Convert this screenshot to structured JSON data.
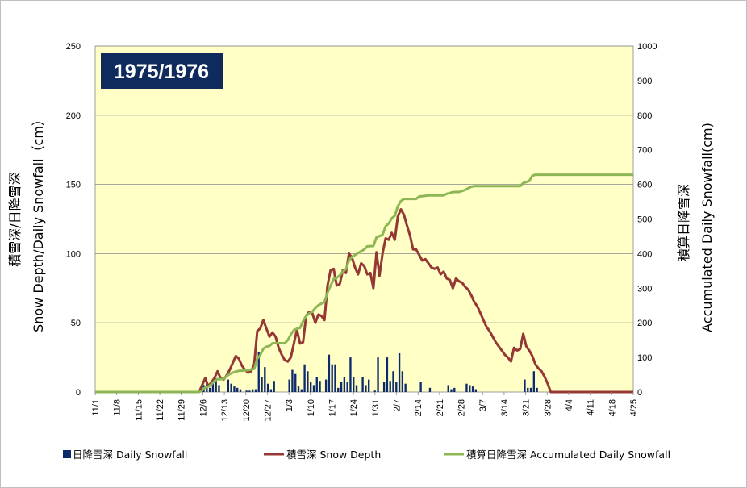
{
  "chart_data": {
    "type": "bar+line",
    "title": "1975/1976",
    "ylabel_left_line1": "積雪深/日降雪深",
    "ylabel_left_line2": "Snow Depth/Daily Snowfall（cm）",
    "ylabel_right_line1": "積算日降雪深",
    "ylabel_right_line2": "Accumulated Daily Snowfall(cm)",
    "ylim_left": [
      0,
      250
    ],
    "ylim_right": [
      0,
      1000
    ],
    "yticks_left": [
      "0",
      "50",
      "100",
      "150",
      "200",
      "250"
    ],
    "yticks_right": [
      "0",
      "100",
      "200",
      "300",
      "400",
      "500",
      "600",
      "700",
      "800",
      "900",
      "1000"
    ],
    "x_domain_dates": [
      "1975-11-01",
      "1976-04-25"
    ],
    "xtick_labels": [
      "11/1",
      "11/8",
      "11/15",
      "11/22",
      "11/29",
      "12/6",
      "12/13",
      "12/20",
      "12/27",
      "1/3",
      "1/10",
      "1/17",
      "1/24",
      "1/31",
      "2/7",
      "2/14",
      "2/21",
      "2/28",
      "3/7",
      "3/14",
      "3/21",
      "3/28",
      "4/4",
      "4/11",
      "4/18",
      "4/25"
    ],
    "grid": true,
    "plot_background": "#ffffc6",
    "legend_position": "bottom",
    "series": [
      {
        "name": "日降雪深 Daily Snowfall",
        "type": "bar",
        "axis": "left",
        "color": "#0d2a6e",
        "points": [
          [
            "1975-12-06",
            5
          ],
          [
            "1975-12-07",
            8
          ],
          [
            "1975-12-08",
            3
          ],
          [
            "1975-12-09",
            6
          ],
          [
            "1975-12-10",
            10
          ],
          [
            "1975-12-11",
            5
          ],
          [
            "1975-12-14",
            9
          ],
          [
            "1975-12-15",
            6
          ],
          [
            "1975-12-16",
            4
          ],
          [
            "1975-12-17",
            3
          ],
          [
            "1975-12-18",
            2
          ],
          [
            "1975-12-20",
            1
          ],
          [
            "1975-12-21",
            1
          ],
          [
            "1975-12-22",
            2
          ],
          [
            "1975-12-23",
            2
          ],
          [
            "1975-12-24",
            29
          ],
          [
            "1975-12-25",
            11
          ],
          [
            "1975-12-26",
            18
          ],
          [
            "1975-12-27",
            6
          ],
          [
            "1975-12-28",
            2
          ],
          [
            "1975-12-29",
            8
          ],
          [
            "1976-01-03",
            9
          ],
          [
            "1976-01-04",
            16
          ],
          [
            "1976-01-05",
            13
          ],
          [
            "1976-01-06",
            4
          ],
          [
            "1976-01-07",
            2
          ],
          [
            "1976-01-08",
            20
          ],
          [
            "1976-01-09",
            15
          ],
          [
            "1976-01-10",
            7
          ],
          [
            "1976-01-11",
            5
          ],
          [
            "1976-01-12",
            11
          ],
          [
            "1976-01-13",
            8
          ],
          [
            "1976-01-15",
            9
          ],
          [
            "1976-01-16",
            27
          ],
          [
            "1976-01-17",
            20
          ],
          [
            "1976-01-18",
            20
          ],
          [
            "1976-01-19",
            3
          ],
          [
            "1976-01-20",
            7
          ],
          [
            "1976-01-21",
            11
          ],
          [
            "1976-01-22",
            7
          ],
          [
            "1976-01-23",
            25
          ],
          [
            "1976-01-24",
            11
          ],
          [
            "1976-01-25",
            5
          ],
          [
            "1976-01-27",
            11
          ],
          [
            "1976-01-28",
            5
          ],
          [
            "1976-01-29",
            9
          ],
          [
            "1976-01-31",
            1
          ],
          [
            "1976-02-01",
            25
          ],
          [
            "1976-02-03",
            7
          ],
          [
            "1976-02-04",
            25
          ],
          [
            "1976-02-05",
            8
          ],
          [
            "1976-02-06",
            15
          ],
          [
            "1976-02-07",
            7
          ],
          [
            "1976-02-08",
            28
          ],
          [
            "1976-02-09",
            15
          ],
          [
            "1976-02-10",
            6
          ],
          [
            "1976-02-15",
            7
          ],
          [
            "1976-02-18",
            3
          ],
          [
            "1976-02-24",
            5
          ],
          [
            "1976-02-25",
            2
          ],
          [
            "1976-02-26",
            3
          ],
          [
            "1976-03-01",
            6
          ],
          [
            "1976-03-02",
            5
          ],
          [
            "1976-03-03",
            4
          ],
          [
            "1976-03-04",
            2
          ],
          [
            "1976-03-20",
            9
          ],
          [
            "1976-03-21",
            3
          ],
          [
            "1976-03-22",
            3
          ],
          [
            "1976-03-23",
            15
          ],
          [
            "1976-03-24",
            3
          ]
        ]
      },
      {
        "name": "積雪深 Snow Depth",
        "type": "line",
        "axis": "left",
        "color": "#953735",
        "points": [
          [
            "1975-12-05",
            0
          ],
          [
            "1975-12-06",
            5
          ],
          [
            "1975-12-07",
            10
          ],
          [
            "1975-12-08",
            4
          ],
          [
            "1975-12-09",
            7
          ],
          [
            "1975-12-10",
            10
          ],
          [
            "1975-12-11",
            15
          ],
          [
            "1975-12-12",
            10
          ],
          [
            "1975-12-13",
            9
          ],
          [
            "1975-12-14",
            12
          ],
          [
            "1975-12-15",
            16
          ],
          [
            "1975-12-16",
            21
          ],
          [
            "1975-12-17",
            26
          ],
          [
            "1975-12-18",
            24
          ],
          [
            "1975-12-19",
            19
          ],
          [
            "1975-12-20",
            16
          ],
          [
            "1975-12-21",
            14
          ],
          [
            "1975-12-22",
            15
          ],
          [
            "1975-12-23",
            20
          ],
          [
            "1975-12-24",
            44
          ],
          [
            "1975-12-25",
            46
          ],
          [
            "1975-12-26",
            52
          ],
          [
            "1975-12-27",
            46
          ],
          [
            "1975-12-28",
            40
          ],
          [
            "1975-12-29",
            43
          ],
          [
            "1975-12-30",
            40
          ],
          [
            "1975-12-31",
            32
          ],
          [
            "1976-01-01",
            27
          ],
          [
            "1976-01-02",
            23
          ],
          [
            "1976-01-03",
            22
          ],
          [
            "1976-01-04",
            25
          ],
          [
            "1976-01-05",
            35
          ],
          [
            "1976-01-06",
            45
          ],
          [
            "1976-01-07",
            35
          ],
          [
            "1976-01-08",
            36
          ],
          [
            "1976-01-09",
            55
          ],
          [
            "1976-01-10",
            58
          ],
          [
            "1976-01-11",
            57
          ],
          [
            "1976-01-12",
            50
          ],
          [
            "1976-01-13",
            56
          ],
          [
            "1976-01-14",
            55
          ],
          [
            "1976-01-15",
            52
          ],
          [
            "1976-01-16",
            77
          ],
          [
            "1976-01-17",
            88
          ],
          [
            "1976-01-18",
            89
          ],
          [
            "1976-01-19",
            77
          ],
          [
            "1976-01-20",
            78
          ],
          [
            "1976-01-21",
            88
          ],
          [
            "1976-01-22",
            86
          ],
          [
            "1976-01-23",
            100
          ],
          [
            "1976-01-24",
            97
          ],
          [
            "1976-01-25",
            90
          ],
          [
            "1976-01-26",
            85
          ],
          [
            "1976-01-27",
            93
          ],
          [
            "1976-01-28",
            91
          ],
          [
            "1976-01-29",
            85
          ],
          [
            "1976-01-30",
            86
          ],
          [
            "1976-01-31",
            75
          ],
          [
            "1976-02-01",
            101
          ],
          [
            "1976-02-02",
            84
          ],
          [
            "1976-02-03",
            100
          ],
          [
            "1976-02-04",
            111
          ],
          [
            "1976-02-05",
            110
          ],
          [
            "1976-02-06",
            115
          ],
          [
            "1976-02-07",
            110
          ],
          [
            "1976-02-08",
            127
          ],
          [
            "1976-02-09",
            132
          ],
          [
            "1976-02-10",
            128
          ],
          [
            "1976-02-11",
            120
          ],
          [
            "1976-02-12",
            113
          ],
          [
            "1976-02-13",
            103
          ],
          [
            "1976-02-14",
            103
          ],
          [
            "1976-02-15",
            99
          ],
          [
            "1976-02-16",
            95
          ],
          [
            "1976-02-17",
            96
          ],
          [
            "1976-02-18",
            93
          ],
          [
            "1976-02-19",
            90
          ],
          [
            "1976-02-20",
            89
          ],
          [
            "1976-02-21",
            90
          ],
          [
            "1976-02-22",
            85
          ],
          [
            "1976-02-23",
            87
          ],
          [
            "1976-02-24",
            82
          ],
          [
            "1976-02-25",
            81
          ],
          [
            "1976-02-26",
            75
          ],
          [
            "1976-02-27",
            82
          ],
          [
            "1976-02-28",
            80
          ],
          [
            "1976-02-29",
            79
          ],
          [
            "1976-03-01",
            76
          ],
          [
            "1976-03-02",
            74
          ],
          [
            "1976-03-03",
            70
          ],
          [
            "1976-03-04",
            65
          ],
          [
            "1976-03-05",
            62
          ],
          [
            "1976-03-06",
            57
          ],
          [
            "1976-03-07",
            52
          ],
          [
            "1976-03-08",
            47
          ],
          [
            "1976-03-09",
            44
          ],
          [
            "1976-03-10",
            40
          ],
          [
            "1976-03-11",
            36
          ],
          [
            "1976-03-12",
            33
          ],
          [
            "1976-03-13",
            30
          ],
          [
            "1976-03-14",
            27
          ],
          [
            "1976-03-15",
            25
          ],
          [
            "1976-03-16",
            22
          ],
          [
            "1976-03-17",
            32
          ],
          [
            "1976-03-18",
            30
          ],
          [
            "1976-03-19",
            31
          ],
          [
            "1976-03-20",
            42
          ],
          [
            "1976-03-21",
            33
          ],
          [
            "1976-03-22",
            30
          ],
          [
            "1976-03-23",
            26
          ],
          [
            "1976-03-24",
            20
          ],
          [
            "1976-03-25",
            17
          ],
          [
            "1976-03-26",
            15
          ],
          [
            "1976-03-27",
            11
          ],
          [
            "1976-03-28",
            6
          ],
          [
            "1976-03-29",
            0
          ],
          [
            "1976-04-25",
            0
          ]
        ]
      },
      {
        "name": "積算日降雪深 Accumulated Daily Snowfall",
        "type": "line",
        "axis": "right",
        "color": "#8db654",
        "points": [
          [
            "1975-11-01",
            0
          ],
          [
            "1975-12-05",
            0
          ],
          [
            "1975-12-06",
            5
          ],
          [
            "1975-12-07",
            13
          ],
          [
            "1975-12-08",
            16
          ],
          [
            "1975-12-09",
            22
          ],
          [
            "1975-12-10",
            32
          ],
          [
            "1975-12-11",
            37
          ],
          [
            "1975-12-13",
            37
          ],
          [
            "1975-12-14",
            46
          ],
          [
            "1975-12-15",
            52
          ],
          [
            "1975-12-16",
            56
          ],
          [
            "1975-12-17",
            59
          ],
          [
            "1975-12-18",
            61
          ],
          [
            "1975-12-20",
            62
          ],
          [
            "1975-12-21",
            63
          ],
          [
            "1975-12-22",
            65
          ],
          [
            "1975-12-23",
            67
          ],
          [
            "1975-12-24",
            96
          ],
          [
            "1975-12-25",
            107
          ],
          [
            "1975-12-26",
            125
          ],
          [
            "1975-12-27",
            131
          ],
          [
            "1975-12-28",
            133
          ],
          [
            "1975-12-29",
            141
          ],
          [
            "1976-01-02",
            141
          ],
          [
            "1976-01-03",
            150
          ],
          [
            "1976-01-04",
            166
          ],
          [
            "1976-01-05",
            179
          ],
          [
            "1976-01-06",
            183
          ],
          [
            "1976-01-07",
            185
          ],
          [
            "1976-01-08",
            205
          ],
          [
            "1976-01-09",
            220
          ],
          [
            "1976-01-10",
            227
          ],
          [
            "1976-01-11",
            232
          ],
          [
            "1976-01-12",
            243
          ],
          [
            "1976-01-13",
            251
          ],
          [
            "1976-01-15",
            260
          ],
          [
            "1976-01-16",
            287
          ],
          [
            "1976-01-17",
            307
          ],
          [
            "1976-01-18",
            327
          ],
          [
            "1976-01-19",
            330
          ],
          [
            "1976-01-20",
            337
          ],
          [
            "1976-01-21",
            348
          ],
          [
            "1976-01-22",
            355
          ],
          [
            "1976-01-23",
            380
          ],
          [
            "1976-01-24",
            391
          ],
          [
            "1976-01-25",
            396
          ],
          [
            "1976-01-27",
            407
          ],
          [
            "1976-01-28",
            412
          ],
          [
            "1976-01-29",
            421
          ],
          [
            "1976-01-31",
            422
          ],
          [
            "1976-02-01",
            447
          ],
          [
            "1976-02-03",
            454
          ],
          [
            "1976-02-04",
            479
          ],
          [
            "1976-02-05",
            487
          ],
          [
            "1976-02-06",
            502
          ],
          [
            "1976-02-07",
            509
          ],
          [
            "1976-02-08",
            537
          ],
          [
            "1976-02-09",
            552
          ],
          [
            "1976-02-10",
            558
          ],
          [
            "1976-02-14",
            558
          ],
          [
            "1976-02-15",
            565
          ],
          [
            "1976-02-18",
            568
          ],
          [
            "1976-02-23",
            568
          ],
          [
            "1976-02-24",
            573
          ],
          [
            "1976-02-25",
            575
          ],
          [
            "1976-02-26",
            578
          ],
          [
            "1976-02-28",
            578
          ],
          [
            "1976-03-01",
            584
          ],
          [
            "1976-03-02",
            589
          ],
          [
            "1976-03-03",
            593
          ],
          [
            "1976-03-04",
            595
          ],
          [
            "1976-03-19",
            595
          ],
          [
            "1976-03-20",
            604
          ],
          [
            "1976-03-21",
            607
          ],
          [
            "1976-03-22",
            610
          ],
          [
            "1976-03-23",
            625
          ],
          [
            "1976-03-24",
            628
          ],
          [
            "1976-04-25",
            628
          ]
        ]
      }
    ]
  },
  "legend": {
    "bar_label": "日降雪深 Daily Snowfall",
    "depth_label": "積雪深 Snow Depth",
    "accum_label": "積算日降雪深 Accumulated Daily Snowfall"
  }
}
